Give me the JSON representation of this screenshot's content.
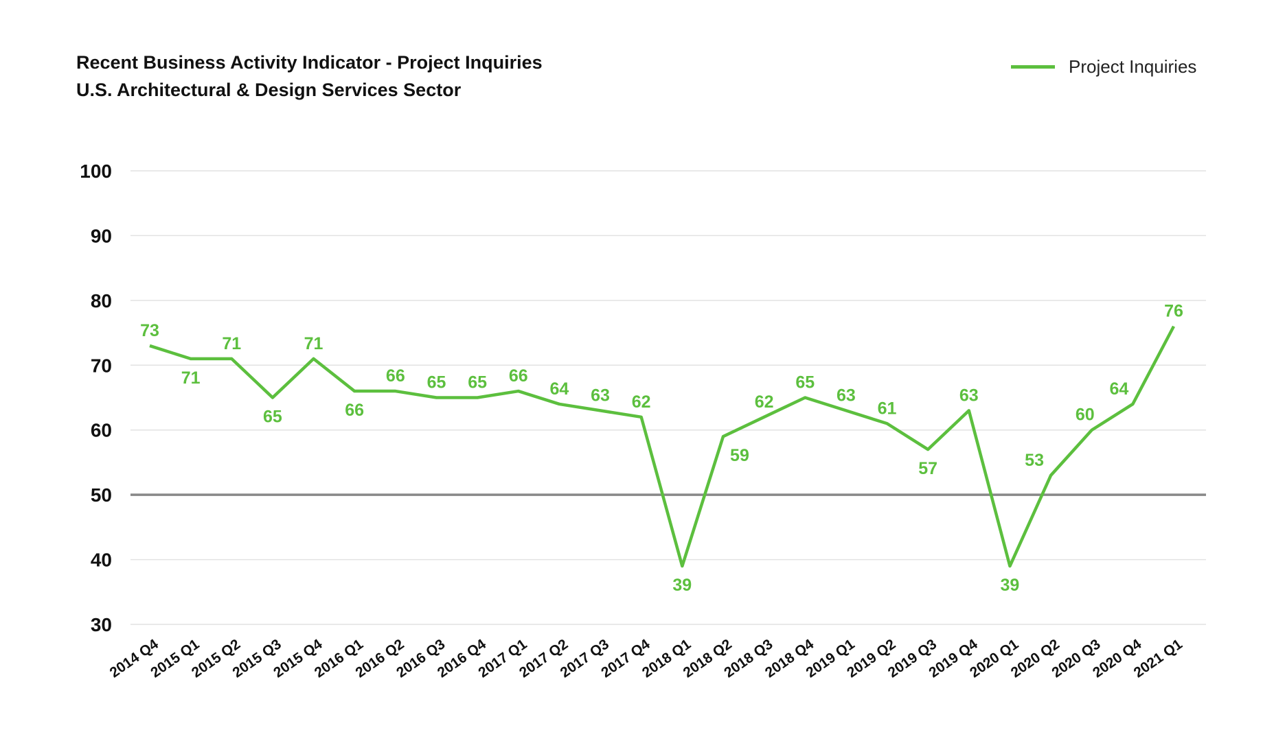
{
  "chart_data": {
    "type": "line",
    "title": "Recent Business Activity Indicator - Project Inquiries",
    "subtitle": "U.S. Architectural & Design Services Sector",
    "xlabel": "",
    "ylabel": "",
    "ylim": [
      30,
      100
    ],
    "yticks": [
      30,
      40,
      50,
      60,
      70,
      80,
      90,
      100
    ],
    "reference_line": 50,
    "grid": true,
    "legend_position": "top-right",
    "categories": [
      "2014 Q4",
      "2015 Q1",
      "2015 Q2",
      "2015 Q3",
      "2015 Q4",
      "2016 Q1",
      "2016 Q2",
      "2016 Q3",
      "2016 Q4",
      "2017 Q1",
      "2017 Q2",
      "2017 Q3",
      "2017 Q4",
      "2018 Q1",
      "2018 Q2",
      "2018 Q3",
      "2018 Q4",
      "2019 Q1",
      "2019 Q2",
      "2019 Q3",
      "2019 Q4",
      "2020 Q1",
      "2020 Q2",
      "2020 Q3",
      "2020 Q4",
      "2021 Q1"
    ],
    "series": [
      {
        "name": "Project Inquiries",
        "color": "#5cbf3e",
        "values": [
          73,
          71,
          71,
          65,
          71,
          66,
          66,
          65,
          65,
          66,
          64,
          63,
          62,
          39,
          59,
          62,
          65,
          63,
          61,
          57,
          63,
          39,
          53,
          60,
          64,
          76
        ]
      }
    ]
  }
}
